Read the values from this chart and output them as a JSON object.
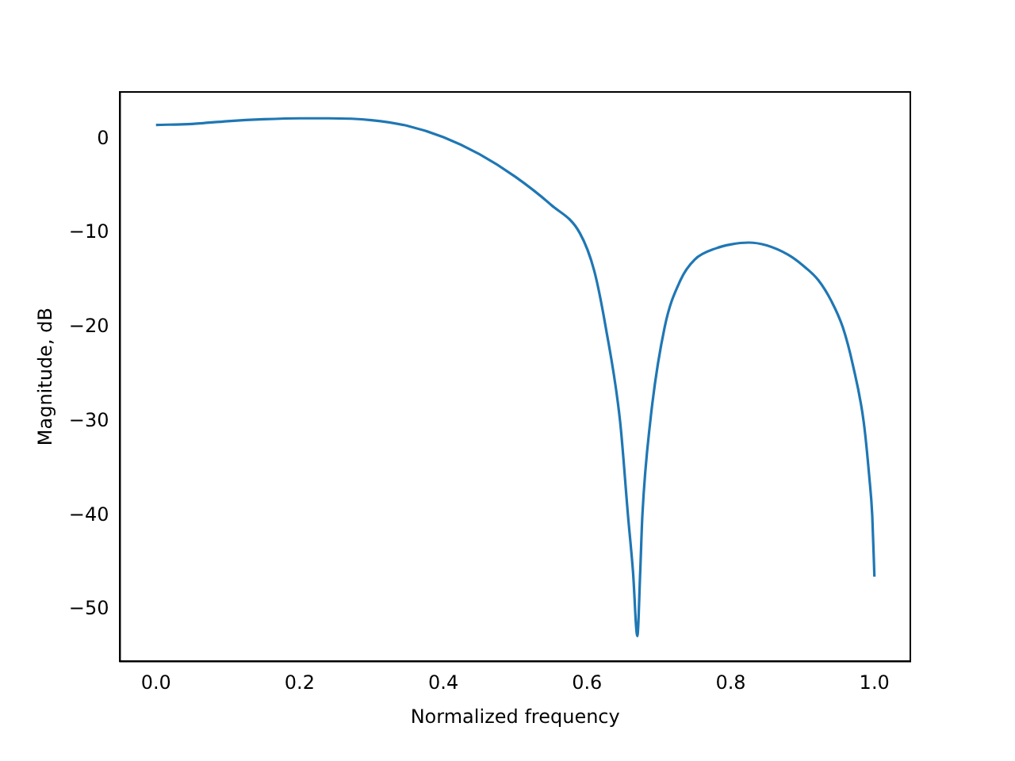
{
  "chart_data": {
    "type": "line",
    "xlabel": "Normalized frequency",
    "ylabel": "Magnitude, dB",
    "series": [
      {
        "color": "#1f77b4",
        "x": [
          0,
          0.05,
          0.1,
          0.15,
          0.2,
          0.24,
          0.3,
          0.35,
          0.4,
          0.45,
          0.5,
          0.55,
          0.59,
          0.61,
          0.626,
          0.646,
          0.657,
          0.664,
          0.67,
          0.674,
          0.677,
          0.688,
          0.708,
          0.73,
          0.75,
          0.78,
          0.8,
          0.825,
          0.85,
          0.88,
          0.9,
          0.922,
          0.94,
          0.956,
          0.97,
          0.985,
          0.993,
          0.997,
          1.0
        ],
        "values": [
          1.5,
          1.6,
          1.9,
          2.1,
          2.2,
          2.2,
          2.0,
          1.4,
          0.2,
          -1.6,
          -4.0,
          -7.0,
          -10,
          -14,
          -20,
          -30,
          -40,
          -46,
          -52.8,
          -46,
          -40,
          -30,
          -20,
          -15,
          -12.8,
          -11.6,
          -11.2,
          -11,
          -11.3,
          -12.3,
          -13.4,
          -15,
          -17.2,
          -20,
          -24,
          -30,
          -36,
          -40,
          -46.5
        ]
      }
    ],
    "xlim": [
      -0.05,
      1.05
    ],
    "ylim": [
      -55.5,
      5
    ],
    "xticks": [
      {
        "value": 0,
        "label": "0.0"
      },
      0.2,
      0.4,
      0.6,
      0.8,
      {
        "value": 1,
        "label": "1.0"
      }
    ],
    "yticks": [
      -50,
      -40,
      -30,
      -20,
      -10,
      0
    ],
    "grid": false,
    "legend": false,
    "marker": "none",
    "line_style": "solid"
  }
}
